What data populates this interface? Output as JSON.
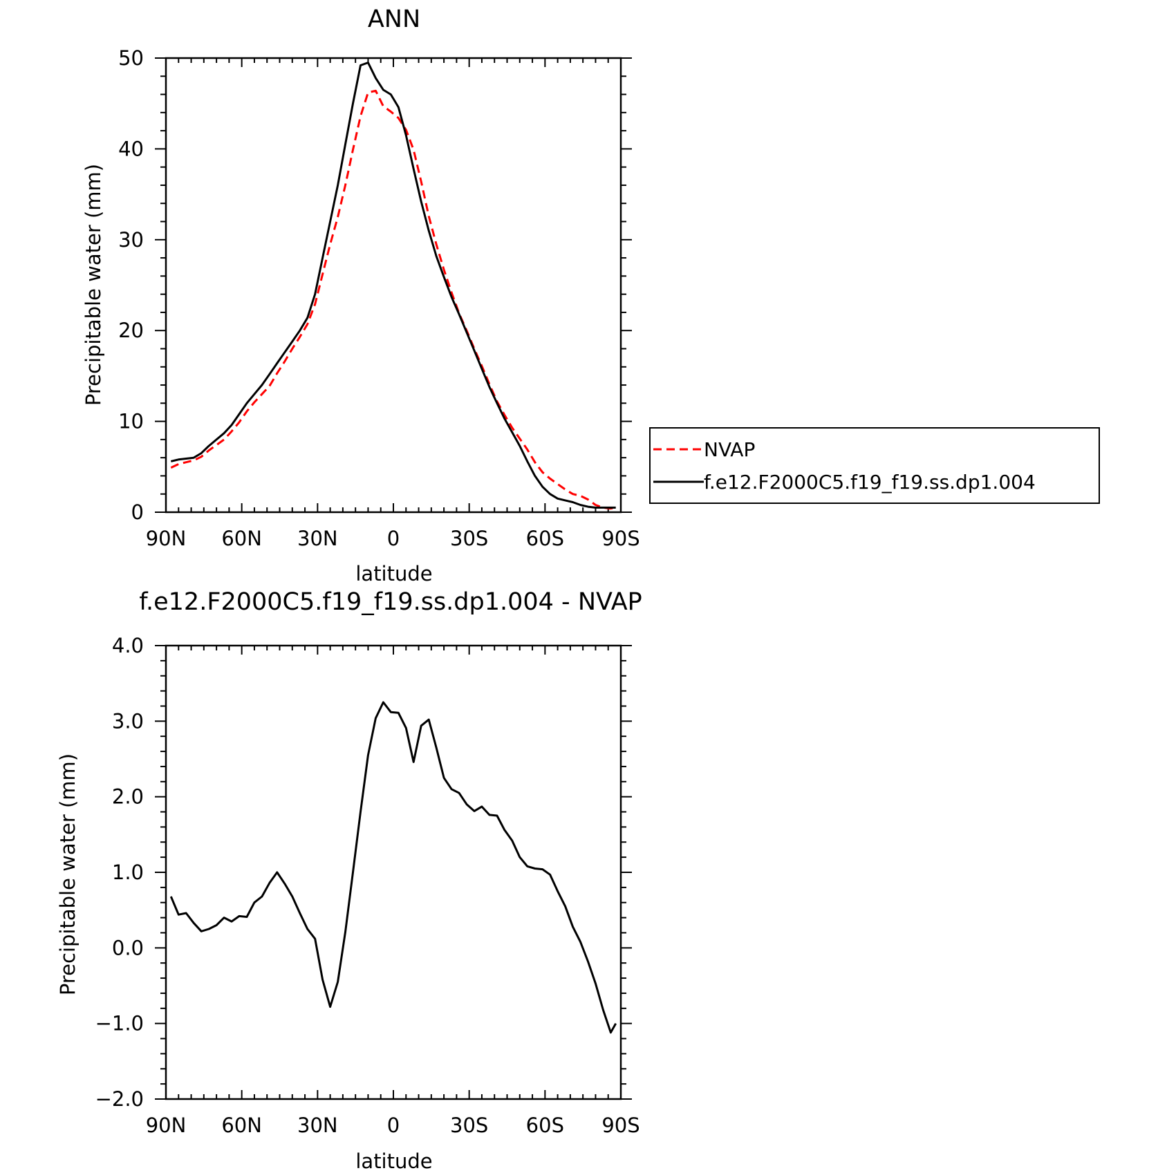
{
  "chart_data": [
    {
      "type": "line",
      "title": "ANN",
      "xlabel": "latitude",
      "ylabel": "Precipitable water (mm)",
      "xlim": [
        90,
        -90
      ],
      "ylim": [
        0,
        50
      ],
      "x_tick_values": [
        90,
        60,
        30,
        0,
        -30,
        -60,
        -90
      ],
      "x_tick_labels": [
        "90N",
        "60N",
        "30N",
        "0",
        "30S",
        "60S",
        "90S"
      ],
      "y_tick_values": [
        0,
        10,
        20,
        30,
        40,
        50
      ],
      "y_tick_labels": [
        "0",
        "10",
        "20",
        "30",
        "40",
        "50"
      ],
      "grid": false,
      "legend_position": "right",
      "series": [
        {
          "name": "NVAP",
          "color": "#ff0000",
          "dash": "dashed",
          "x": [
            88,
            85,
            82,
            79,
            76,
            73,
            70,
            67,
            64,
            61,
            58,
            55,
            52,
            49,
            46,
            43,
            40,
            37,
            34,
            31,
            28,
            25,
            22,
            19,
            16,
            13,
            10,
            7,
            4,
            1,
            -2,
            -5,
            -8,
            -11,
            -14,
            -17,
            -20,
            -23,
            -26,
            -29,
            -32,
            -35,
            -38,
            -41,
            -44,
            -47,
            -50,
            -53,
            -56,
            -59,
            -62,
            -65,
            -68,
            -71,
            -74,
            -77,
            -80,
            -83,
            -86,
            -88
          ],
          "y": [
            4.9,
            5.3,
            5.5,
            5.7,
            6.1,
            6.8,
            7.4,
            8.0,
            8.9,
            9.9,
            11.1,
            12.1,
            13.0,
            13.9,
            15.3,
            16.6,
            18.0,
            19.3,
            20.7,
            22.9,
            26.2,
            29.5,
            32.5,
            36.0,
            39.9,
            43.6,
            46.2,
            46.4,
            44.7,
            44.1,
            43.4,
            42.1,
            39.9,
            36.4,
            32.6,
            29.5,
            26.7,
            24.2,
            21.9,
            20.0,
            18.0,
            16.1,
            14.1,
            12.2,
            10.7,
            9.3,
            8.1,
            6.9,
            5.5,
            4.4,
            3.7,
            3.1,
            2.5,
            2.0,
            1.8,
            1.4,
            0.8,
            0.5,
            0.4,
            0.5
          ]
        },
        {
          "name": "f.e12.F2000C5.f19_f19.ss.dp1.004",
          "color": "#000000",
          "dash": "solid",
          "x": [
            88,
            85,
            82,
            79,
            76,
            73,
            70,
            67,
            64,
            61,
            58,
            55,
            52,
            49,
            46,
            43,
            40,
            37,
            34,
            31,
            28,
            25,
            22,
            19,
            16,
            13,
            10,
            7,
            4,
            1,
            -2,
            -5,
            -8,
            -11,
            -14,
            -17,
            -20,
            -23,
            -26,
            -29,
            -32,
            -35,
            -38,
            -41,
            -44,
            -47,
            -50,
            -53,
            -56,
            -59,
            -62,
            -65,
            -68,
            -71,
            -74,
            -77,
            -80,
            -83,
            -86,
            -88
          ],
          "y": [
            5.6,
            5.8,
            5.9,
            6.0,
            6.5,
            7.3,
            8.0,
            8.7,
            9.6,
            10.8,
            12.0,
            13.0,
            14.0,
            15.2,
            16.4,
            17.6,
            18.8,
            20.0,
            21.4,
            24.0,
            28.0,
            32.0,
            36.0,
            40.5,
            45.0,
            49.2,
            49.5,
            47.8,
            46.5,
            46.0,
            44.6,
            41.5,
            37.8,
            34.2,
            31.0,
            28.2,
            25.9,
            23.7,
            21.8,
            19.8,
            17.8,
            15.8,
            13.8,
            12.0,
            10.3,
            8.8,
            7.3,
            5.6,
            4.0,
            2.8,
            2.0,
            1.5,
            1.3,
            1.1,
            0.8,
            0.6,
            0.5,
            0.5,
            0.5,
            0.5
          ]
        }
      ]
    },
    {
      "type": "line",
      "title": "f.e12.F2000C5.f19_f19.ss.dp1.004 - NVAP",
      "xlabel": "latitude",
      "ylabel": "Precipitable water (mm)",
      "xlim": [
        90,
        -90
      ],
      "ylim": [
        -2.0,
        4.0
      ],
      "x_tick_values": [
        90,
        60,
        30,
        0,
        -30,
        -60,
        -90
      ],
      "x_tick_labels": [
        "90N",
        "60N",
        "30N",
        "0",
        "30S",
        "60S",
        "90S"
      ],
      "y_tick_values": [
        -2.0,
        -1.0,
        0.0,
        1.0,
        2.0,
        3.0,
        4.0
      ],
      "y_tick_labels": [
        "−2.0",
        "−1.0",
        "0.0",
        "1.0",
        "2.0",
        "3.0",
        "4.0"
      ],
      "grid": false,
      "series": [
        {
          "color": "#000000",
          "dash": "solid",
          "x": [
            88,
            85,
            82,
            79,
            76,
            73,
            70,
            67,
            64,
            61,
            58,
            55,
            52,
            49,
            46,
            43,
            40,
            37,
            34,
            31,
            28,
            25,
            22,
            19,
            16,
            13,
            10,
            7,
            4,
            1,
            -2,
            -5,
            -8,
            -11,
            -14,
            -17,
            -20,
            -23,
            -26,
            -29,
            -32,
            -35,
            -38,
            -41,
            -44,
            -47,
            -50,
            -53,
            -56,
            -59,
            -62,
            -65,
            -68,
            -71,
            -74,
            -77,
            -80,
            -83,
            -86,
            -88
          ],
          "y": [
            0.68,
            0.44,
            0.46,
            0.33,
            0.22,
            0.25,
            0.3,
            0.4,
            0.35,
            0.42,
            0.41,
            0.6,
            0.68,
            0.86,
            1.0,
            0.85,
            0.68,
            0.46,
            0.25,
            0.12,
            -0.42,
            -0.78,
            -0.45,
            0.21,
            1.0,
            1.8,
            2.55,
            3.04,
            3.25,
            3.12,
            3.11,
            2.91,
            2.46,
            2.94,
            3.02,
            2.65,
            2.25,
            2.1,
            2.05,
            1.9,
            1.81,
            1.87,
            1.76,
            1.75,
            1.56,
            1.42,
            1.2,
            1.08,
            1.05,
            1.04,
            0.97,
            0.75,
            0.55,
            0.28,
            0.08,
            -0.18,
            -0.47,
            -0.82,
            -1.12,
            -1.0
          ]
        }
      ]
    }
  ]
}
